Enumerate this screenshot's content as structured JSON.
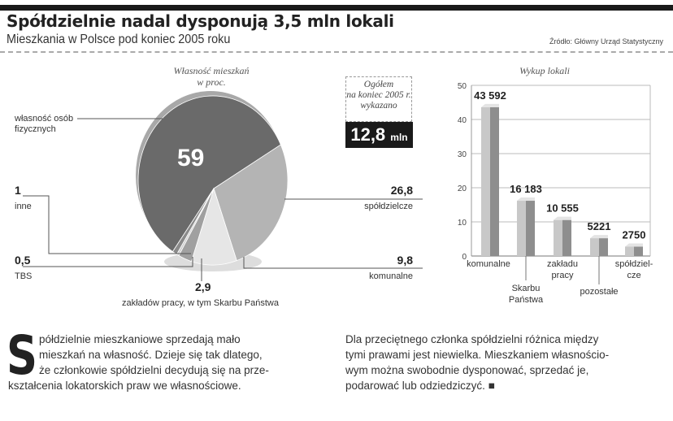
{
  "header": {
    "title": "Spółdzielnie nadal dysponują 3,5 mln lokali",
    "subtitle": "Mieszkania w Polsce pod koniec 2005 roku",
    "source": "Źródło: Główny Urząd Statystyczny"
  },
  "total": {
    "line1": "Ogółem",
    "line2": "na koniec 2005 r.",
    "line3": "wykazano",
    "value": "12,8",
    "unit": "mln"
  },
  "chart_data": [
    {
      "type": "pie",
      "title": "Własność mieszkań",
      "subtitle": "w proc.",
      "slices": [
        {
          "label": "własność osób fizycznych",
          "value": 59,
          "display": "59",
          "color": "#6a6a6a"
        },
        {
          "label": "spółdzielcze",
          "value": 26.8,
          "display": "26,8",
          "color": "#b4b4b4"
        },
        {
          "label": "komunalne",
          "value": 9.8,
          "display": "9,8",
          "color": "#e6e6e6"
        },
        {
          "label": "zakładów pracy, w tym Skarbu Państwa",
          "value": 2.9,
          "display": "2,9",
          "color": "#a0a0a0"
        },
        {
          "label": "TBS",
          "value": 0.5,
          "display": "0,5",
          "color": "#d0d0d0"
        },
        {
          "label": "inne",
          "value": 1,
          "display": "1",
          "color": "#8a8a8a"
        }
      ]
    },
    {
      "type": "bar",
      "title": "Wykup lokali",
      "ylim": [
        0,
        50
      ],
      "yticks": [
        0,
        10,
        20,
        30,
        40,
        50
      ],
      "grid": true,
      "categories": [
        "komunalne",
        "Skarbu Państwa",
        "zakładu pracy",
        "pozostałe",
        "spółdziel-cze"
      ],
      "values": [
        43.592,
        16.183,
        10.555,
        5.221,
        2.75
      ],
      "labels": [
        "43 592",
        "16 183",
        "10 555",
        "5221",
        "2750"
      ]
    }
  ],
  "article": {
    "dropcap": "S",
    "left": [
      "półdzielnie mieszkaniowe sprzedają mało",
      "mieszkań na własność. Dzieje się tak dlatego,",
      "że członkowie spółdzielni decydują się na prze-",
      "kształcenia lokatorskich praw we własnościowe."
    ],
    "right": [
      "Dla przeciętnego członka spółdzielni różnica między",
      "tymi prawami jest niewielka. Mieszkaniem własnościo-",
      "wym można swobodnie dysponować, sprzedać je,",
      "podarować lub odziedziczyć. ■"
    ]
  }
}
